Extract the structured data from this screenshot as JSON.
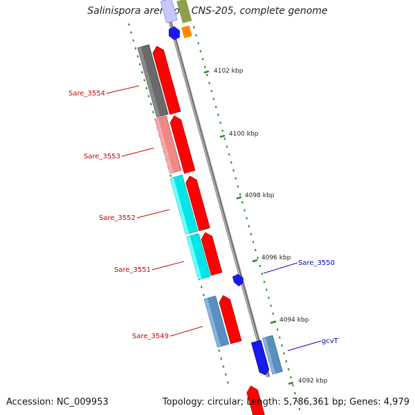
{
  "title": "Salinispora arenicola CNS-205, complete genome",
  "accession": "Accession: NC_009953",
  "topology": "Topology: circular; Length: 5,786,361 bp; Genes: 4,979",
  "colors": {
    "backbone": "#8c8c8c",
    "tick": "#2a8a2a",
    "strand_arrow": "#ff0000",
    "left_label": "#cc0000",
    "right_label": "#0000cc"
  },
  "scale_labels": [
    "4102 kbp",
    "4100 kbp",
    "4098 kbp",
    "4096 kbp",
    "4094 kbp",
    "4092 kbp"
  ],
  "left_genes": [
    "Sare_3554",
    "Sare_3553",
    "Sare_3552",
    "Sare_3551",
    "Sare_3549"
  ],
  "right_genes": [
    "Sare_3550",
    "gcvT"
  ]
}
